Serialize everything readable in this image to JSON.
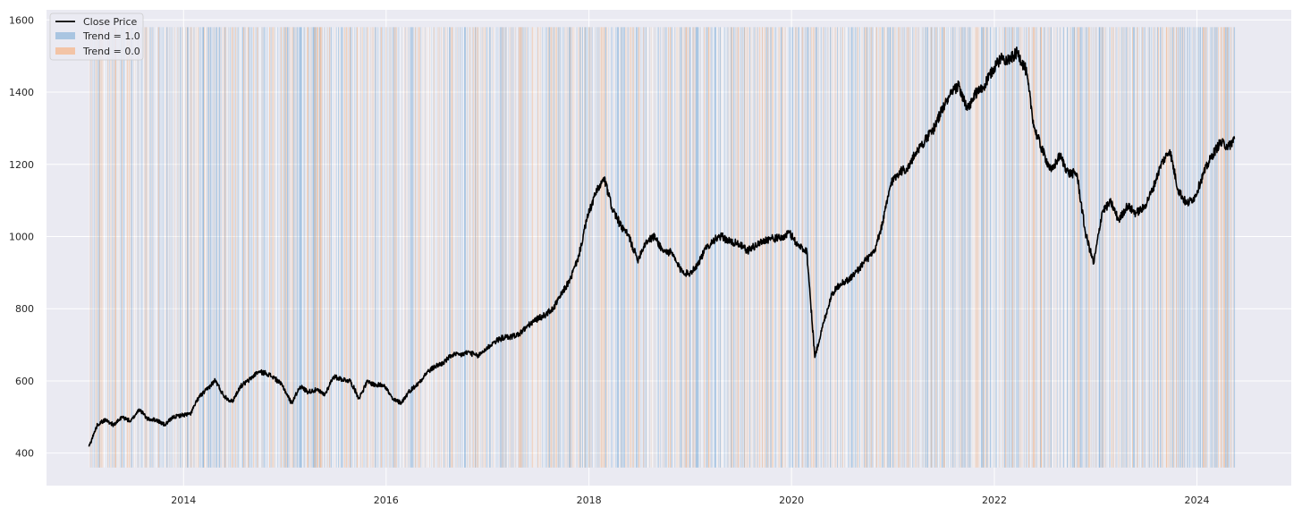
{
  "chart_data": {
    "type": "line",
    "title": "",
    "xlabel": "",
    "ylabel": "",
    "xlim": [
      "2012-08-25",
      "2024-12-06"
    ],
    "ylim": [
      310,
      1628
    ],
    "grid": true,
    "legend": {
      "placement": "top-left",
      "entries": [
        {
          "label": "Close Price",
          "kind": "line",
          "color": "#000000"
        },
        {
          "label": "Trend = 1.0",
          "kind": "patch",
          "color": "#a9c5e1"
        },
        {
          "label": "Trend = 0.0",
          "kind": "patch",
          "color": "#f3c4a6"
        }
      ]
    },
    "x_ticks": [
      "2014",
      "2016",
      "2018",
      "2020",
      "2022",
      "2024"
    ],
    "y_ticks": [
      400,
      600,
      800,
      1000,
      1200,
      1400,
      1600
    ],
    "colors": {
      "background": "#eaeaf2",
      "grid": "#ffffff",
      "price_line": "#000000",
      "trend_up": "#5b9bd0",
      "trend_down": "#f4a870"
    },
    "trend_band": {
      "date_start": "2013-01-25",
      "date_end": "2024-05-15",
      "y_range": [
        360,
        1580
      ]
    },
    "series": [
      {
        "name": "Close Price",
        "x": [
          "2013-01-25",
          "2013-02-25",
          "2013-03-25",
          "2013-04-25",
          "2013-05-25",
          "2013-06-25",
          "2013-07-25",
          "2013-08-25",
          "2013-09-25",
          "2013-10-25",
          "2013-11-25",
          "2013-12-25",
          "2014-01-25",
          "2014-02-25",
          "2014-03-25",
          "2014-04-25",
          "2014-05-25",
          "2014-06-25",
          "2014-07-25",
          "2014-08-25",
          "2014-09-25",
          "2014-10-25",
          "2014-11-25",
          "2014-12-25",
          "2015-01-25",
          "2015-02-25",
          "2015-03-25",
          "2015-04-25",
          "2015-05-25",
          "2015-06-25",
          "2015-07-25",
          "2015-08-25",
          "2015-09-25",
          "2015-10-25",
          "2015-11-25",
          "2015-12-25",
          "2016-01-25",
          "2016-02-25",
          "2016-03-25",
          "2016-04-25",
          "2016-05-25",
          "2016-06-25",
          "2016-07-25",
          "2016-08-25",
          "2016-09-25",
          "2016-10-25",
          "2016-11-25",
          "2016-12-25",
          "2017-01-25",
          "2017-02-25",
          "2017-03-25",
          "2017-04-25",
          "2017-05-25",
          "2017-06-25",
          "2017-07-25",
          "2017-08-25",
          "2017-09-25",
          "2017-10-25",
          "2017-11-25",
          "2017-12-25",
          "2018-01-25",
          "2018-02-25",
          "2018-03-25",
          "2018-04-25",
          "2018-05-25",
          "2018-06-25",
          "2018-07-25",
          "2018-08-25",
          "2018-09-25",
          "2018-10-25",
          "2018-11-25",
          "2018-12-25",
          "2019-01-25",
          "2019-02-25",
          "2019-03-25",
          "2019-04-25",
          "2019-05-25",
          "2019-06-25",
          "2019-07-25",
          "2019-08-25",
          "2019-09-25",
          "2019-10-25",
          "2019-11-25",
          "2019-12-25",
          "2020-01-25",
          "2020-02-25",
          "2020-03-25",
          "2020-04-25",
          "2020-05-25",
          "2020-06-25",
          "2020-07-25",
          "2020-08-25",
          "2020-09-25",
          "2020-10-25",
          "2020-11-25",
          "2020-12-25",
          "2021-01-25",
          "2021-02-25",
          "2021-03-25",
          "2021-04-25",
          "2021-05-25",
          "2021-06-25",
          "2021-07-25",
          "2021-08-25",
          "2021-09-25",
          "2021-10-25",
          "2021-11-25",
          "2021-12-25",
          "2022-01-25",
          "2022-02-25",
          "2022-03-25",
          "2022-04-25",
          "2022-05-25",
          "2022-06-25",
          "2022-07-25",
          "2022-08-25",
          "2022-09-25",
          "2022-10-25",
          "2022-11-25",
          "2022-12-25",
          "2023-01-25",
          "2023-02-25",
          "2023-03-25",
          "2023-04-25",
          "2023-05-25",
          "2023-06-25",
          "2023-07-25",
          "2023-08-25",
          "2023-09-25",
          "2023-10-25",
          "2023-11-25",
          "2023-12-25",
          "2024-01-25",
          "2024-02-25",
          "2024-03-25",
          "2024-04-25",
          "2024-05-15"
        ],
        "y": [
          418,
          480,
          492,
          478,
          500,
          488,
          522,
          494,
          492,
          478,
          500,
          505,
          508,
          555,
          575,
          602,
          560,
          542,
          585,
          602,
          625,
          622,
          608,
          585,
          538,
          585,
          570,
          575,
          562,
          612,
          605,
          600,
          552,
          598,
          588,
          590,
          548,
          540,
          572,
          592,
          622,
          640,
          650,
          672,
          672,
          680,
          668,
          688,
          708,
          720,
          722,
          730,
          752,
          770,
          782,
          800,
          842,
          880,
          945,
          1050,
          1120,
          1160,
          1080,
          1030,
          1000,
          935,
          985,
          1000,
          960,
          955,
          910,
          895,
          920,
          965,
          990,
          1000,
          985,
          980,
          960,
          975,
          990,
          995,
          995,
          1010,
          975,
          960,
          665,
          760,
          840,
          870,
          880,
          905,
          935,
          955,
          1040,
          1150,
          1180,
          1190,
          1235,
          1265,
          1295,
          1350,
          1390,
          1420,
          1350,
          1395,
          1415,
          1460,
          1495,
          1490,
          1510,
          1460,
          1300,
          1235,
          1180,
          1225,
          1175,
          1175,
          1010,
          925,
          1070,
          1095,
          1045,
          1085,
          1065,
          1080,
          1130,
          1200,
          1240,
          1130,
          1090,
          1110,
          1175,
          1225,
          1260,
          1250,
          1270
        ]
      }
    ]
  }
}
